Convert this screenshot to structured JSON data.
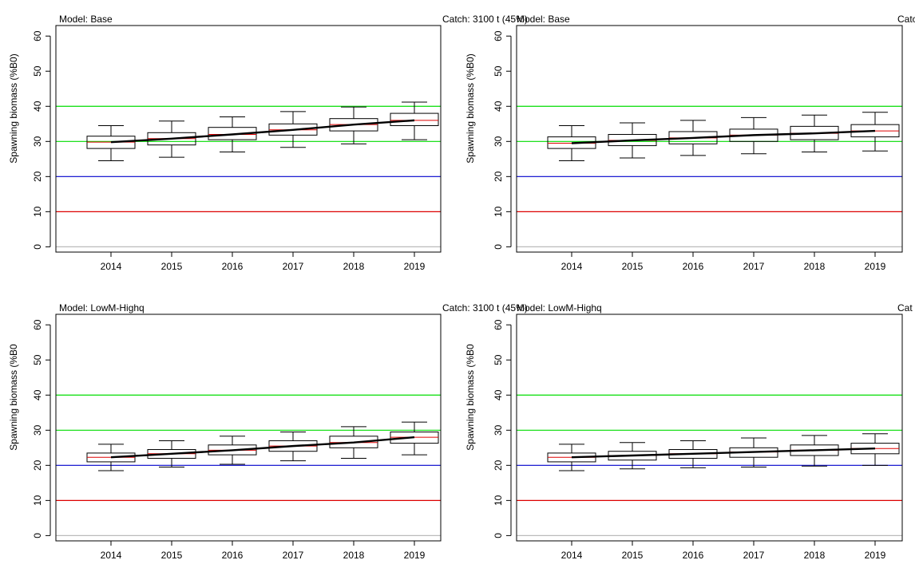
{
  "chart_data": [
    {
      "type": "boxplot",
      "model_label": "Model: Base",
      "catch_label": "Catch: 3100 t (45%)",
      "ylabel": "Spawning biomass (%B0)",
      "categories": [
        "2014",
        "2015",
        "2016",
        "2017",
        "2018",
        "2019"
      ],
      "yticks": [
        "0",
        "10",
        "20",
        "30",
        "40",
        "50",
        "60"
      ],
      "ylim": [
        -1.5,
        63
      ],
      "reference_lines": [
        {
          "value": 40,
          "color": "#00dd00"
        },
        {
          "value": 30,
          "color": "#00dd00"
        },
        {
          "value": 20,
          "color": "#0000cc"
        },
        {
          "value": 10,
          "color": "#dd0000"
        },
        {
          "value": 0,
          "color": "#bbbbbb"
        }
      ],
      "boxes": [
        {
          "whisker_low": 24.5,
          "q1": 28.0,
          "median": 29.8,
          "q3": 31.5,
          "whisker_high": 34.5
        },
        {
          "whisker_low": 25.5,
          "q1": 29.0,
          "median": 30.8,
          "q3": 32.5,
          "whisker_high": 35.8
        },
        {
          "whisker_low": 27.0,
          "q1": 30.5,
          "median": 32.0,
          "q3": 34.0,
          "whisker_high": 37.0
        },
        {
          "whisker_low": 28.3,
          "q1": 31.8,
          "median": 33.3,
          "q3": 35.0,
          "whisker_high": 38.5
        },
        {
          "whisker_low": 29.3,
          "q1": 33.0,
          "median": 34.8,
          "q3": 36.5,
          "whisker_high": 39.8
        },
        {
          "whisker_low": 30.5,
          "q1": 34.5,
          "median": 36.0,
          "q3": 38.0,
          "whisker_high": 41.2
        }
      ],
      "trend": [
        29.8,
        30.8,
        32.0,
        33.3,
        34.8,
        36.0
      ]
    },
    {
      "type": "boxplot",
      "model_label": "Model: Base",
      "catch_label": "Catch",
      "ylabel": "Spawning biomass (%B0)",
      "categories": [
        "2014",
        "2015",
        "2016",
        "2017",
        "2018",
        "2019"
      ],
      "yticks": [
        "0",
        "10",
        "20",
        "30",
        "40",
        "50",
        "60"
      ],
      "ylim": [
        -1.5,
        63
      ],
      "reference_lines": [
        {
          "value": 40,
          "color": "#00dd00"
        },
        {
          "value": 30,
          "color": "#00dd00"
        },
        {
          "value": 20,
          "color": "#0000cc"
        },
        {
          "value": 10,
          "color": "#dd0000"
        },
        {
          "value": 0,
          "color": "#bbbbbb"
        }
      ],
      "boxes": [
        {
          "whisker_low": 24.5,
          "q1": 28.0,
          "median": 29.5,
          "q3": 31.3,
          "whisker_high": 34.5
        },
        {
          "whisker_low": 25.3,
          "q1": 28.8,
          "median": 30.3,
          "q3": 32.0,
          "whisker_high": 35.3
        },
        {
          "whisker_low": 26.0,
          "q1": 29.3,
          "median": 31.0,
          "q3": 32.8,
          "whisker_high": 36.0
        },
        {
          "whisker_low": 26.5,
          "q1": 30.0,
          "median": 31.8,
          "q3": 33.5,
          "whisker_high": 36.8
        },
        {
          "whisker_low": 27.0,
          "q1": 30.5,
          "median": 32.3,
          "q3": 34.3,
          "whisker_high": 37.5
        },
        {
          "whisker_low": 27.3,
          "q1": 31.3,
          "median": 33.0,
          "q3": 34.8,
          "whisker_high": 38.3
        }
      ],
      "trend": [
        29.5,
        30.3,
        31.0,
        31.8,
        32.3,
        33.0
      ]
    },
    {
      "type": "boxplot",
      "model_label": "Model: LowM-Highq",
      "catch_label": "Catch: 3100 t (45%)",
      "ylabel": "Spawning biomass (%B0",
      "categories": [
        "2014",
        "2015",
        "2016",
        "2017",
        "2018",
        "2019"
      ],
      "yticks": [
        "0",
        "10",
        "20",
        "30",
        "40",
        "50",
        "60"
      ],
      "ylim": [
        -1.5,
        63
      ],
      "reference_lines": [
        {
          "value": 40,
          "color": "#00dd00"
        },
        {
          "value": 30,
          "color": "#00dd00"
        },
        {
          "value": 20,
          "color": "#0000cc"
        },
        {
          "value": 10,
          "color": "#dd0000"
        },
        {
          "value": 0,
          "color": "#bbbbbb"
        }
      ],
      "boxes": [
        {
          "whisker_low": 18.5,
          "q1": 21.0,
          "median": 22.3,
          "q3": 23.5,
          "whisker_high": 26.0
        },
        {
          "whisker_low": 19.5,
          "q1": 22.0,
          "median": 23.3,
          "q3": 24.5,
          "whisker_high": 27.0
        },
        {
          "whisker_low": 20.3,
          "q1": 23.0,
          "median": 24.3,
          "q3": 25.8,
          "whisker_high": 28.3
        },
        {
          "whisker_low": 21.3,
          "q1": 24.0,
          "median": 25.5,
          "q3": 27.0,
          "whisker_high": 29.5
        },
        {
          "whisker_low": 22.0,
          "q1": 25.0,
          "median": 26.5,
          "q3": 28.3,
          "whisker_high": 31.0
        },
        {
          "whisker_low": 23.0,
          "q1": 26.3,
          "median": 28.0,
          "q3": 29.5,
          "whisker_high": 32.3
        }
      ],
      "trend": [
        22.3,
        23.3,
        24.3,
        25.5,
        26.5,
        28.0
      ]
    },
    {
      "type": "boxplot",
      "model_label": "Model: LowM-Highq",
      "catch_label": "Cat",
      "ylabel": "Spawning biomass (%B0",
      "categories": [
        "2014",
        "2015",
        "2016",
        "2017",
        "2018",
        "2019"
      ],
      "yticks": [
        "0",
        "10",
        "20",
        "30",
        "40",
        "50",
        "60"
      ],
      "ylim": [
        -1.5,
        63
      ],
      "reference_lines": [
        {
          "value": 40,
          "color": "#00dd00"
        },
        {
          "value": 30,
          "color": "#00dd00"
        },
        {
          "value": 20,
          "color": "#0000cc"
        },
        {
          "value": 10,
          "color": "#dd0000"
        },
        {
          "value": 0,
          "color": "#bbbbbb"
        }
      ],
      "boxes": [
        {
          "whisker_low": 18.5,
          "q1": 21.0,
          "median": 22.3,
          "q3": 23.5,
          "whisker_high": 26.0
        },
        {
          "whisker_low": 19.0,
          "q1": 21.5,
          "median": 22.8,
          "q3": 24.0,
          "whisker_high": 26.5
        },
        {
          "whisker_low": 19.3,
          "q1": 22.0,
          "median": 23.3,
          "q3": 24.5,
          "whisker_high": 27.0
        },
        {
          "whisker_low": 19.5,
          "q1": 22.3,
          "median": 23.8,
          "q3": 25.0,
          "whisker_high": 27.8
        },
        {
          "whisker_low": 19.8,
          "q1": 22.8,
          "median": 24.3,
          "q3": 25.8,
          "whisker_high": 28.5
        },
        {
          "whisker_low": 20.0,
          "q1": 23.3,
          "median": 24.8,
          "q3": 26.3,
          "whisker_high": 29.0
        }
      ],
      "trend": [
        22.3,
        22.8,
        23.3,
        23.8,
        24.3,
        24.8
      ]
    }
  ]
}
